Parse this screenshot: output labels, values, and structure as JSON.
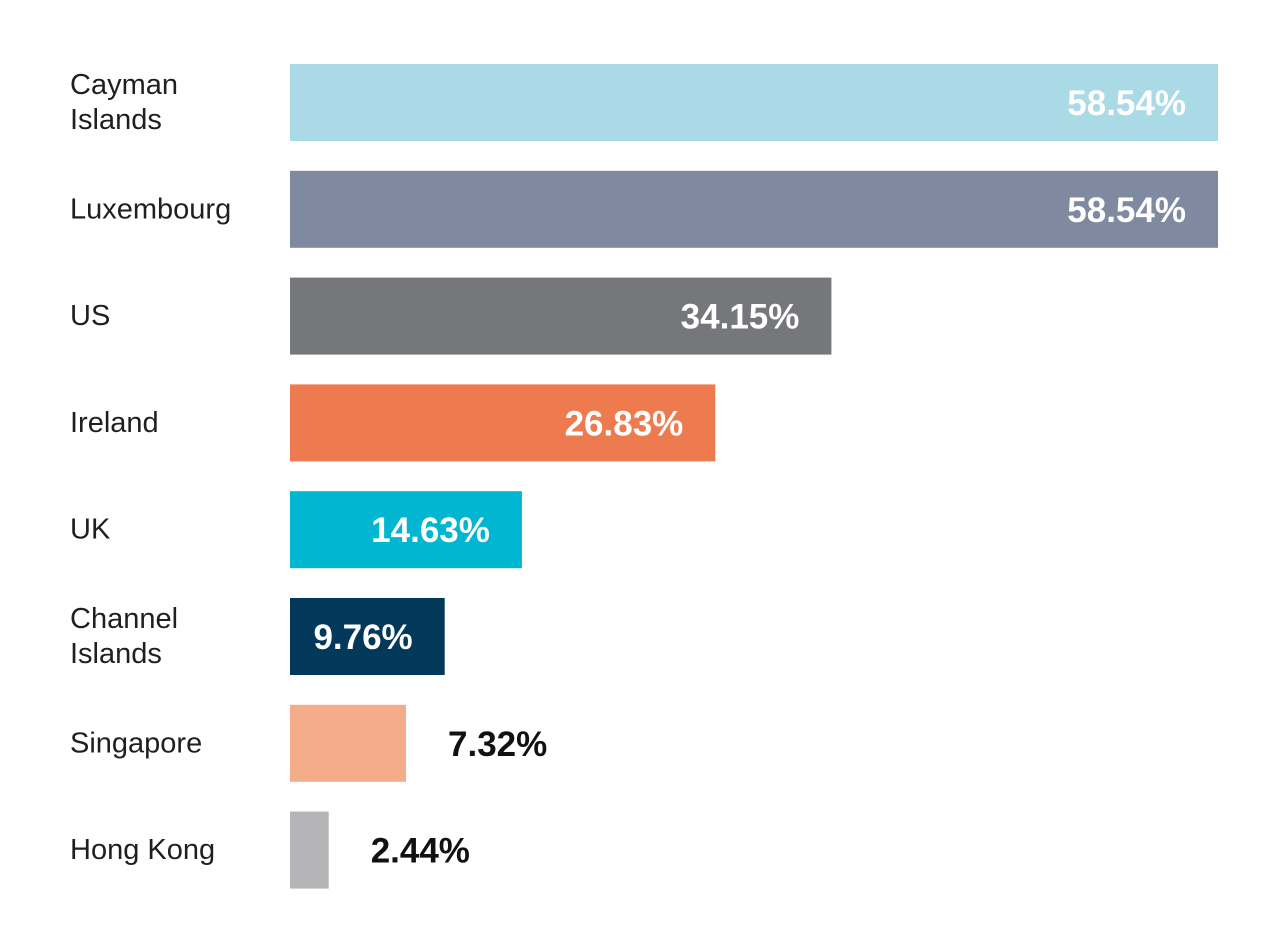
{
  "chart_data": {
    "type": "bar",
    "orientation": "horizontal",
    "categories": [
      "Cayman Islands",
      "Luxembourg",
      "US",
      "Ireland",
      "UK",
      "Channel Islands",
      "Singapore",
      "Hong Kong"
    ],
    "category_lines": [
      [
        "Cayman",
        "Islands"
      ],
      [
        "Luxembourg"
      ],
      [
        "US"
      ],
      [
        "Ireland"
      ],
      [
        "UK"
      ],
      [
        "Channel",
        "Islands"
      ],
      [
        "Singapore"
      ],
      [
        "Hong Kong"
      ]
    ],
    "values": [
      58.54,
      58.54,
      34.15,
      26.83,
      14.63,
      9.76,
      7.32,
      2.44
    ],
    "value_labels": [
      "58.54%",
      "58.54%",
      "34.15%",
      "26.83%",
      "14.63%",
      "9.76%",
      "7.32%",
      "2.44%"
    ],
    "colors": [
      "#abdae7",
      "#7f8aa0",
      "#76777b",
      "#ee7a50",
      "#00b6d0",
      "#02385a",
      "#f4ac8b",
      "#b5b5b7"
    ],
    "label_colors": [
      "#ffffff",
      "#ffffff",
      "#ffffff",
      "#ffffff",
      "#ffffff",
      "#ffffff",
      "#111111",
      "#111111"
    ],
    "value_label_position": [
      "inside-end",
      "inside-end",
      "inside-end",
      "inside-end",
      "inside-end",
      "inside-end",
      "outside-end",
      "outside-end"
    ],
    "xlim": [
      0,
      58.54
    ],
    "title": "",
    "xlabel": "",
    "ylabel": "",
    "grid": false,
    "legend": false
  }
}
